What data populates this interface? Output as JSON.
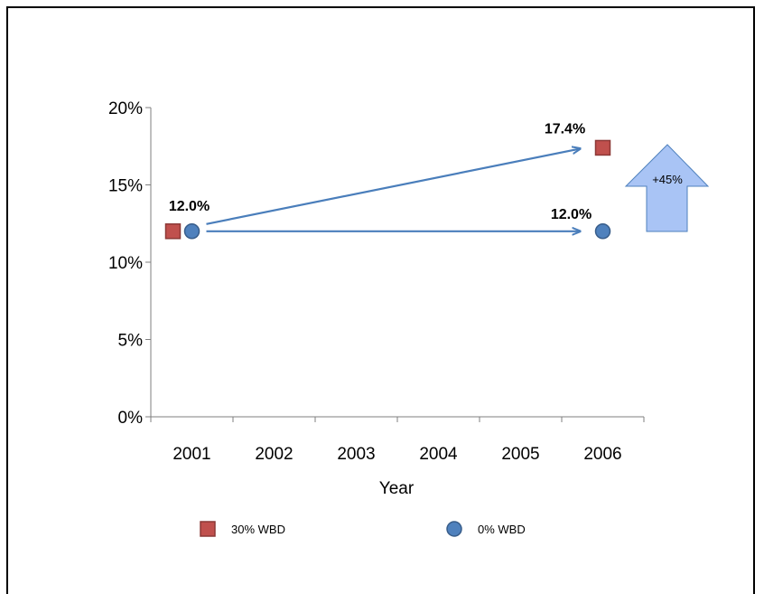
{
  "chart_data": {
    "type": "scatter",
    "xlabel": "Year",
    "ylabel": "",
    "categories": [
      "2001",
      "2002",
      "2003",
      "2004",
      "2005",
      "2006"
    ],
    "y_ticks": [
      "0%",
      "5%",
      "10%",
      "15%",
      "20%"
    ],
    "ylim": [
      0,
      20
    ],
    "series": [
      {
        "name": "30% WBD",
        "marker": "square",
        "color": "#c0504d",
        "points": [
          {
            "x": "2001",
            "y": 12.0
          },
          {
            "x": "2006",
            "y": 17.4
          }
        ]
      },
      {
        "name": "0% WBD",
        "marker": "circle",
        "color": "#4f81bd",
        "points": [
          {
            "x": "2001",
            "y": 12.0
          },
          {
            "x": "2006",
            "y": 12.0
          }
        ]
      }
    ],
    "data_labels": [
      "12.0%",
      "17.4%",
      "12.0%"
    ],
    "annotation": {
      "text": "+45%",
      "shape": "up-arrow",
      "color": "#a9c4f5"
    },
    "legend": {
      "position": "bottom"
    },
    "grid": false
  }
}
